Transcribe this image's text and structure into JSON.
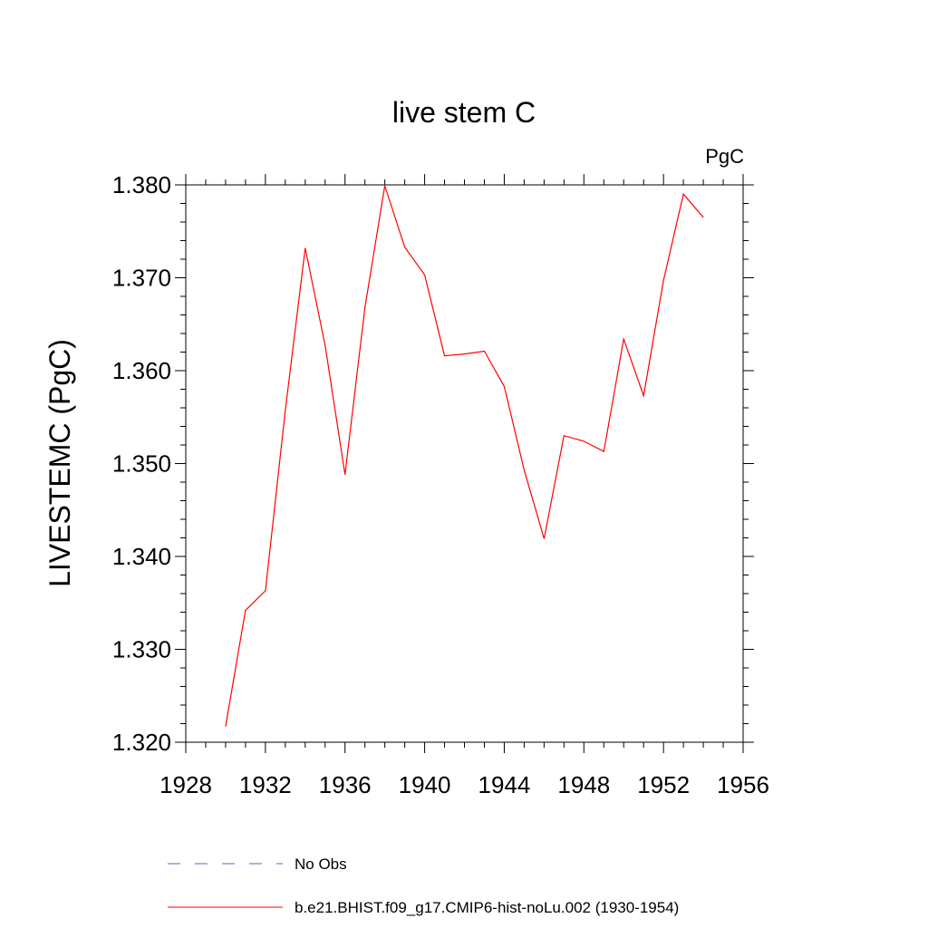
{
  "chart_data": {
    "type": "line",
    "title": "live stem C",
    "units_label": "PgC",
    "ylabel": "LIVESTEMC  (PgC)",
    "xlabel": "",
    "xlim": [
      1928,
      1956
    ],
    "ylim": [
      1.32,
      1.38
    ],
    "x_ticks": [
      1928,
      1932,
      1936,
      1940,
      1944,
      1948,
      1952,
      1956
    ],
    "x_tick_labels": [
      "1928",
      "1932",
      "1936",
      "1940",
      "1944",
      "1948",
      "1952",
      "1956"
    ],
    "y_ticks": [
      1.32,
      1.33,
      1.34,
      1.35,
      1.36,
      1.37,
      1.38
    ],
    "y_tick_labels": [
      "1.320",
      "1.330",
      "1.340",
      "1.350",
      "1.360",
      "1.370",
      "1.380"
    ],
    "grid": false,
    "legend_position": "bottom",
    "series": [
      {
        "name": "b.e21.BHIST.f09_g17.CMIP6-hist-noLu.002 (1930-1954)",
        "color": "#ff0000",
        "dash": "solid",
        "x": [
          1930,
          1931,
          1932,
          1933,
          1934,
          1935,
          1936,
          1937,
          1938,
          1939,
          1940,
          1941,
          1942,
          1943,
          1944,
          1945,
          1946,
          1947,
          1948,
          1949,
          1950,
          1951,
          1952,
          1953,
          1954
        ],
        "y": [
          1.3217,
          1.3342,
          1.3363,
          1.3557,
          1.3732,
          1.3627,
          1.3488,
          1.3668,
          1.3799,
          1.3733,
          1.3703,
          1.3616,
          1.3618,
          1.3621,
          1.3583,
          1.3493,
          1.3419,
          1.353,
          1.3524,
          1.3513,
          1.3634,
          1.3573,
          1.3697,
          1.379,
          1.3765
        ]
      }
    ],
    "legend": [
      {
        "label": "No Obs",
        "color": "#6a5acd",
        "dash": "dashed"
      },
      {
        "label": "b.e21.BHIST.f09_g17.CMIP6-hist-noLu.002 (1930-1954)",
        "color": "#ff0000",
        "dash": "solid"
      }
    ]
  }
}
